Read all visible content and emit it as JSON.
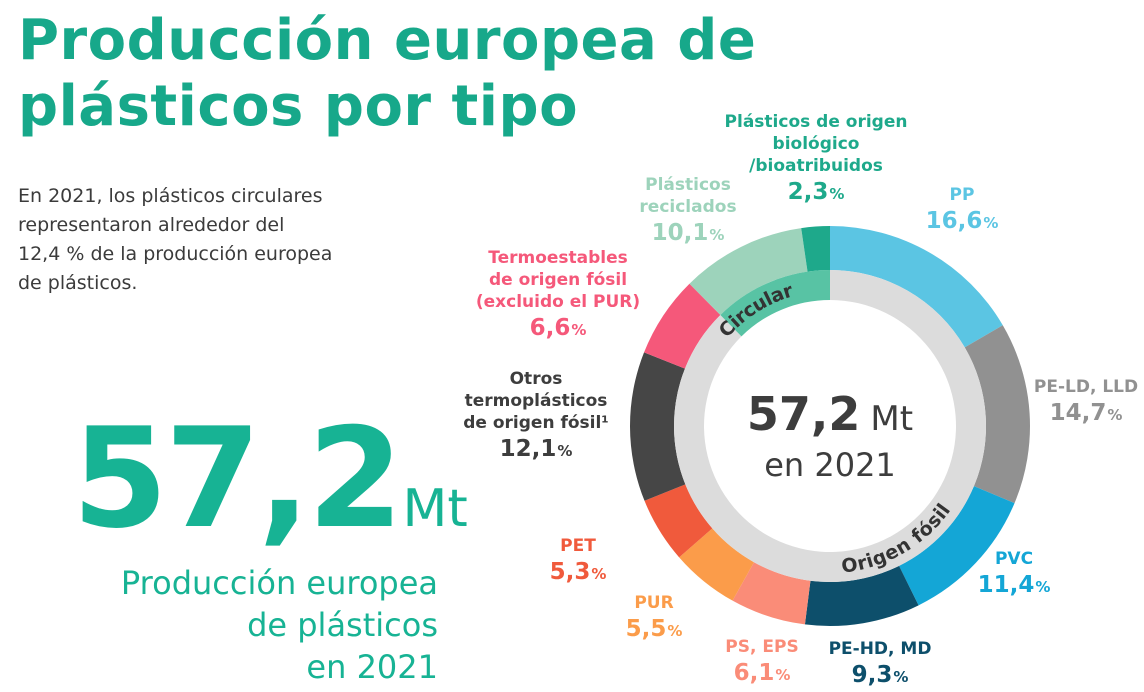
{
  "title_line1": "Producción europea de",
  "title_line2": "plásticos por tipo",
  "intro": [
    "En 2021, los plásticos circulares",
    "representaron alrededor del",
    "12,4 % de la producción europea",
    "de plásticos."
  ],
  "big_number": "57,2",
  "big_unit": "Mt",
  "big_caption": [
    "Producción europea",
    "de plásticos",
    "en 2021"
  ],
  "center_value": "57,2",
  "center_unit": "Mt",
  "center_year": "en 2021",
  "ring_circular_label": "Circular",
  "ring_fossil_label": "Origen fósil",
  "chart_data": {
    "type": "pie",
    "title": "Producción europea de plásticos por tipo",
    "total": "57,2 Mt",
    "unit": "%",
    "slices": [
      {
        "label": "PP",
        "value": 16.6,
        "display": "16,6",
        "color": "#5bc5e3"
      },
      {
        "label": "PE-LD, LLD",
        "value": 14.7,
        "display": "14,7",
        "color": "#919191"
      },
      {
        "label": "PVC",
        "value": 11.4,
        "display": "11,4",
        "color": "#14a6d6"
      },
      {
        "label": "PE-HD, MD",
        "value": 9.3,
        "display": "9,3",
        "color": "#0d4f6b"
      },
      {
        "label": "PS, EPS",
        "value": 6.1,
        "display": "6,1",
        "color": "#fa8c78"
      },
      {
        "label": "PUR",
        "value": 5.5,
        "display": "5,5",
        "color": "#fb9c4a"
      },
      {
        "label": "PET",
        "value": 5.3,
        "display": "5,3",
        "color": "#f05a3c"
      },
      {
        "label": "Otros termoplásticos de origen fósil¹",
        "value": 12.1,
        "display": "12,1",
        "color": "#464646"
      },
      {
        "label": "Termoestables de origen fósil (excluido el PUR)",
        "value": 6.6,
        "display": "6,6",
        "color": "#f5587a"
      },
      {
        "label": "Plásticos reciclados",
        "value": 10.1,
        "display": "10,1",
        "color": "#9dd3bb"
      },
      {
        "label": "Plásticos de origen biológico /bioatribuidos",
        "value": 2.3,
        "display": "2,3",
        "color": "#1ea98b"
      }
    ],
    "groups": [
      {
        "label": "Circular",
        "slices": [
          "Plásticos reciclados",
          "Plásticos de origen biológico /bioatribuidos"
        ],
        "color": "#58c3a4"
      },
      {
        "label": "Origen fósil",
        "color": "#dcdcdc"
      }
    ],
    "labels": [
      {
        "lines": [
          "PP"
        ],
        "pct": "16,6",
        "color": "#5bc5e3"
      },
      {
        "lines": [
          "PE-LD, LLD"
        ],
        "pct": "14,7",
        "color": "#919191"
      },
      {
        "lines": [
          "PVC"
        ],
        "pct": "11,4",
        "color": "#14a6d6"
      },
      {
        "lines": [
          "PE-HD, MD"
        ],
        "pct": "9,3",
        "color": "#0d4f6b"
      },
      {
        "lines": [
          "PS, EPS"
        ],
        "pct": "6,1",
        "color": "#fa8c78"
      },
      {
        "lines": [
          "PUR"
        ],
        "pct": "5,5",
        "color": "#fb9c4a"
      },
      {
        "lines": [
          "PET"
        ],
        "pct": "5,3",
        "color": "#f05a3c"
      },
      {
        "lines": [
          "Otros",
          "termoplásticos",
          "de origen fósil¹"
        ],
        "pct": "12,1",
        "color": "#3d3d3d"
      },
      {
        "lines": [
          "Termoestables",
          "de origen fósil",
          "(excluido el PUR)"
        ],
        "pct": "6,6",
        "color": "#f5587a"
      },
      {
        "lines": [
          "Plásticos",
          "reciclados"
        ],
        "pct": "10,1",
        "color": "#9dd3bb"
      },
      {
        "lines": [
          "Plásticos de origen",
          "biológico",
          "/bioatribuidos"
        ],
        "pct": "2,3",
        "color": "#1ea98b"
      }
    ]
  }
}
